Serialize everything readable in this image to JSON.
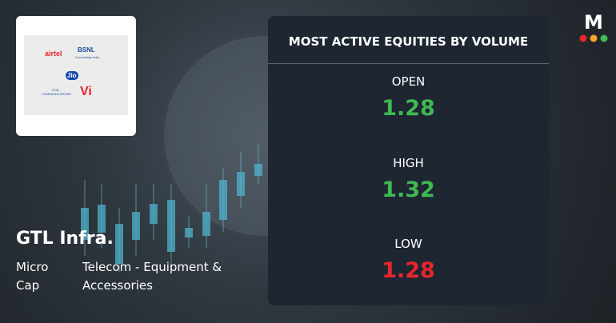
{
  "brand": "M",
  "logo": {
    "airtel": "airtel",
    "bsnl": "BSNL",
    "bsnl_tagline": "Connecting India",
    "jio": "Jio",
    "tata": "TATA COMMUNICATIONS",
    "vi": "Vi"
  },
  "company": {
    "name": "GTL Infra.",
    "cap": "Micro Cap",
    "sector": "Telecom - Equipment & Accessories"
  },
  "panel": {
    "title": "MOST ACTIVE EQUITIES BY VOLUME",
    "stats": [
      {
        "label": "OPEN",
        "value": 1.28,
        "color": "#3fb950"
      },
      {
        "label": "HIGH",
        "value": 1.32,
        "color": "#3fb950"
      },
      {
        "label": "LOW",
        "value": 1.28,
        "color": "#e8262b"
      }
    ]
  }
}
